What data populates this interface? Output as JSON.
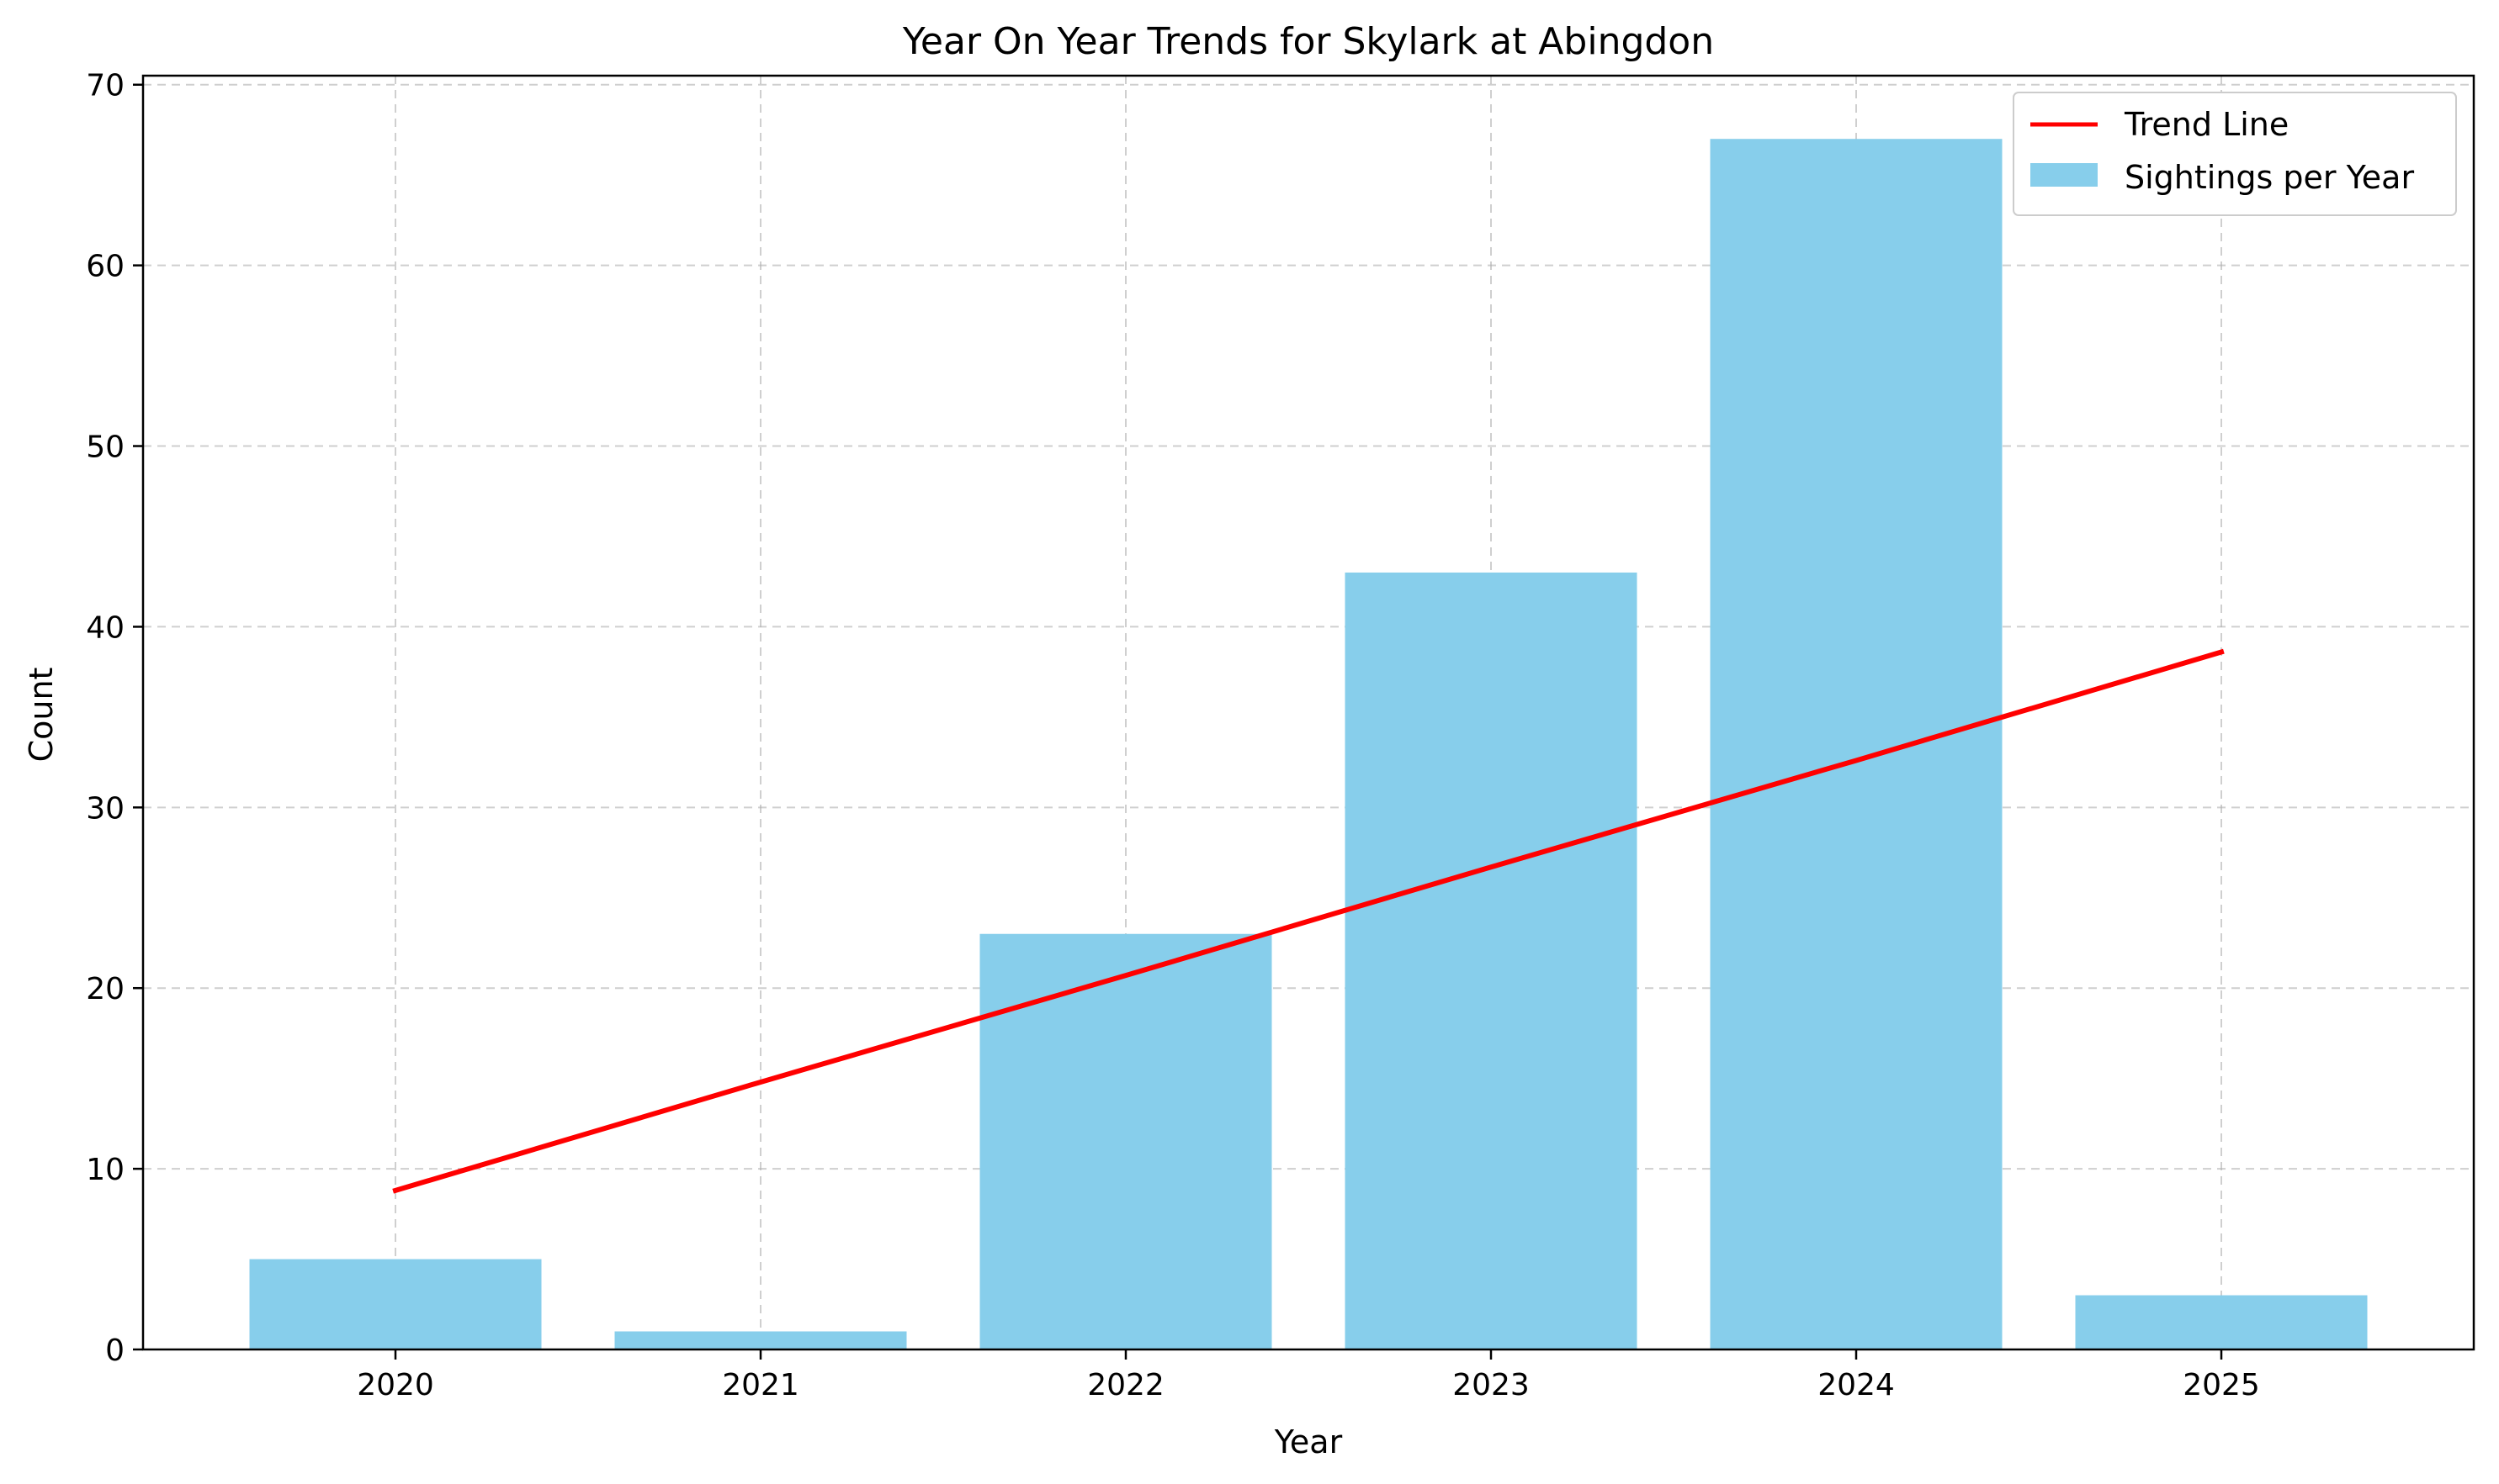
{
  "chart_data": {
    "type": "bar",
    "title": "Year On Year Trends for Skylark at Abingdon",
    "xlabel": "Year",
    "ylabel": "Count",
    "categories": [
      "2020",
      "2021",
      "2022",
      "2023",
      "2024",
      "2025"
    ],
    "series": [
      {
        "name": "Sightings per Year",
        "type": "bar",
        "values": [
          5,
          1,
          23,
          43,
          67,
          3
        ],
        "color": "#87ceeb"
      },
      {
        "name": "Trend Line",
        "type": "line",
        "values": [
          8.8,
          14.8,
          20.7,
          26.7,
          32.6,
          38.6
        ],
        "color": "#ff0000"
      }
    ],
    "ylim": [
      0,
      70.5
    ],
    "yticks": [
      0,
      10,
      20,
      30,
      40,
      50,
      60,
      70
    ],
    "grid": true,
    "legend_position": "top-right"
  }
}
